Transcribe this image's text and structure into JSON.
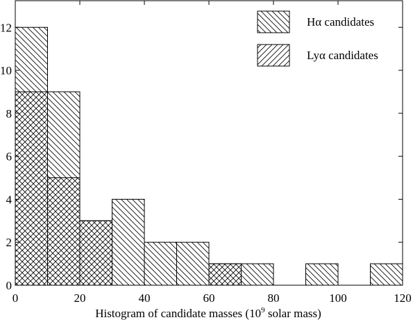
{
  "chart_data": {
    "type": "bar",
    "subtype": "overlaid-histogram",
    "xlabel": "Histogram of candidate masses (10",
    "xlabel_sup": "9",
    "xlabel_suffix": " solar mass)",
    "ylabel": "",
    "xlim": [
      0,
      120
    ],
    "ylim": [
      0,
      13
    ],
    "xticks": [
      0,
      20,
      40,
      60,
      80,
      100,
      120
    ],
    "yticks": [
      0,
      2,
      4,
      6,
      8,
      10,
      12
    ],
    "bin_width": 10,
    "bin_starts": [
      0,
      10,
      20,
      30,
      40,
      50,
      60,
      70,
      80,
      90,
      100,
      110
    ],
    "grid": false,
    "legend_position": "top-right",
    "series": [
      {
        "name": "Hα  candidates",
        "hatch": "backslash",
        "values": [
          12,
          9,
          3,
          4,
          2,
          2,
          1,
          1,
          0,
          1,
          0,
          1
        ]
      },
      {
        "name": "Lyα candidates",
        "hatch": "slash",
        "values": [
          9,
          5,
          3,
          0,
          0,
          0,
          1,
          0,
          0,
          0,
          0,
          0
        ]
      }
    ]
  }
}
